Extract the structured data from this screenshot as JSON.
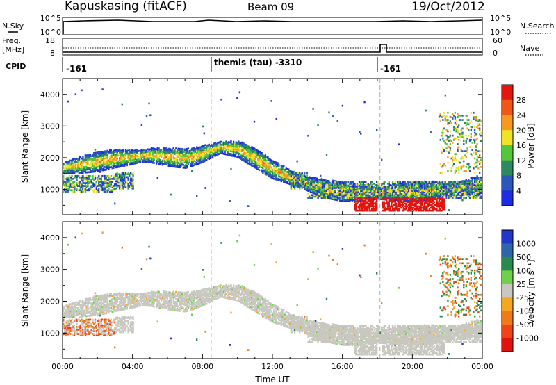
{
  "header": {
    "station": "Kapuskasing (fitACF)",
    "beam": "Beam 09",
    "date": "19/Oct/2012"
  },
  "sky_panel": {
    "left_label": "N.Sky",
    "left_ticks": [
      "10^5",
      "10^0"
    ],
    "right_ticks": [
      "10^5",
      "10^0"
    ],
    "right_label": "N.Search"
  },
  "freq_panel": {
    "left_label_1": "Freq.",
    "left_label_2": "[MHz]",
    "left_ticks": [
      "18",
      "8"
    ],
    "right_ticks": [
      "60",
      "0"
    ],
    "right_label": "Nave"
  },
  "cpid_row": {
    "label": "CPID",
    "segments": [
      "-161",
      "themis (tau) -3310",
      "-161"
    ]
  },
  "chart_data": [
    {
      "type": "heatmap",
      "name": "power",
      "ylabel": "Slant Range [km]",
      "xlabel": "",
      "y_ticks": [
        "1000",
        "2000",
        "3000",
        "4000"
      ],
      "x_range_hours": [
        0,
        24
      ],
      "y_range_km": [
        200,
        4500
      ],
      "colorbar": {
        "label": "Power [dB]",
        "ticks": [
          "4",
          "8",
          "12",
          "16",
          "20",
          "24",
          "28"
        ],
        "colors": [
          "#1e2de0",
          "#2a57b8",
          "#2e8a5e",
          "#54c63a",
          "#f0e227",
          "#f59a1f",
          "#f0561a",
          "#e0160f"
        ]
      }
    },
    {
      "type": "heatmap",
      "name": "velocity",
      "ylabel": "Slant Range [km]",
      "xlabel": "Time UT",
      "y_ticks": [
        "1000",
        "2000",
        "3000",
        "4000"
      ],
      "x_ticks": [
        "00:00",
        "04:00",
        "08:00",
        "12:00",
        "16:00",
        "20:00",
        "00:00"
      ],
      "x_range_hours": [
        0,
        24
      ],
      "y_range_km": [
        200,
        4500
      ],
      "colorbar": {
        "label": "Velocity [m s⁻¹]",
        "ticks": [
          "1000",
          "500",
          "100",
          "25",
          "-25",
          "-100",
          "-500",
          "-1000"
        ],
        "colors": [
          "#2236c8",
          "#2e64a8",
          "#2a8a4e",
          "#6fd04a",
          "#c8c8c0",
          "#f5a623",
          "#f07a1a",
          "#f04318",
          "#e0140f"
        ]
      }
    }
  ]
}
